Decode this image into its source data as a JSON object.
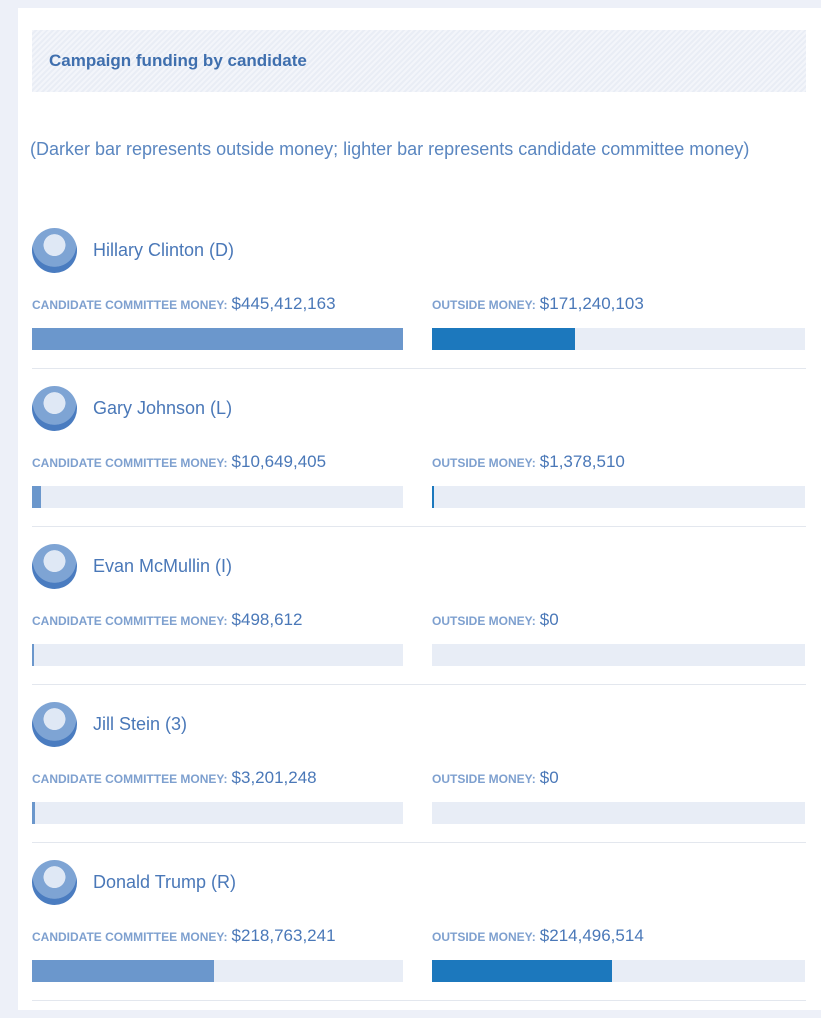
{
  "title": "Campaign funding by candidate",
  "note": "(Darker bar represents outside money; lighter bar represents candidate committee money)",
  "labels": {
    "committee": "CANDIDATE COMMITTEE MONEY:",
    "outside": "OUTSIDE MONEY:"
  },
  "colors": {
    "committee": "#6b97cc",
    "outside": "#1c78bd",
    "track": "#e8edf6"
  },
  "candidates": [
    {
      "name": "Hillary Clinton (D)",
      "committee": 445412163,
      "committee_label": "$445,412,163",
      "outside": 171240103,
      "outside_label": "$171,240,103"
    },
    {
      "name": "Gary Johnson (L)",
      "committee": 10649405,
      "committee_label": "$10,649,405",
      "outside": 1378510,
      "outside_label": "$1,378,510"
    },
    {
      "name": "Evan McMullin (I)",
      "committee": 498612,
      "committee_label": "$498,612",
      "outside": 0,
      "outside_label": "$0"
    },
    {
      "name": "Jill Stein (3)",
      "committee": 3201248,
      "committee_label": "$3,201,248",
      "outside": 0,
      "outside_label": "$0"
    },
    {
      "name": "Donald Trump (R)",
      "committee": 218763241,
      "committee_label": "$218,763,241",
      "outside": 214496514,
      "outside_label": "$214,496,514"
    }
  ]
}
